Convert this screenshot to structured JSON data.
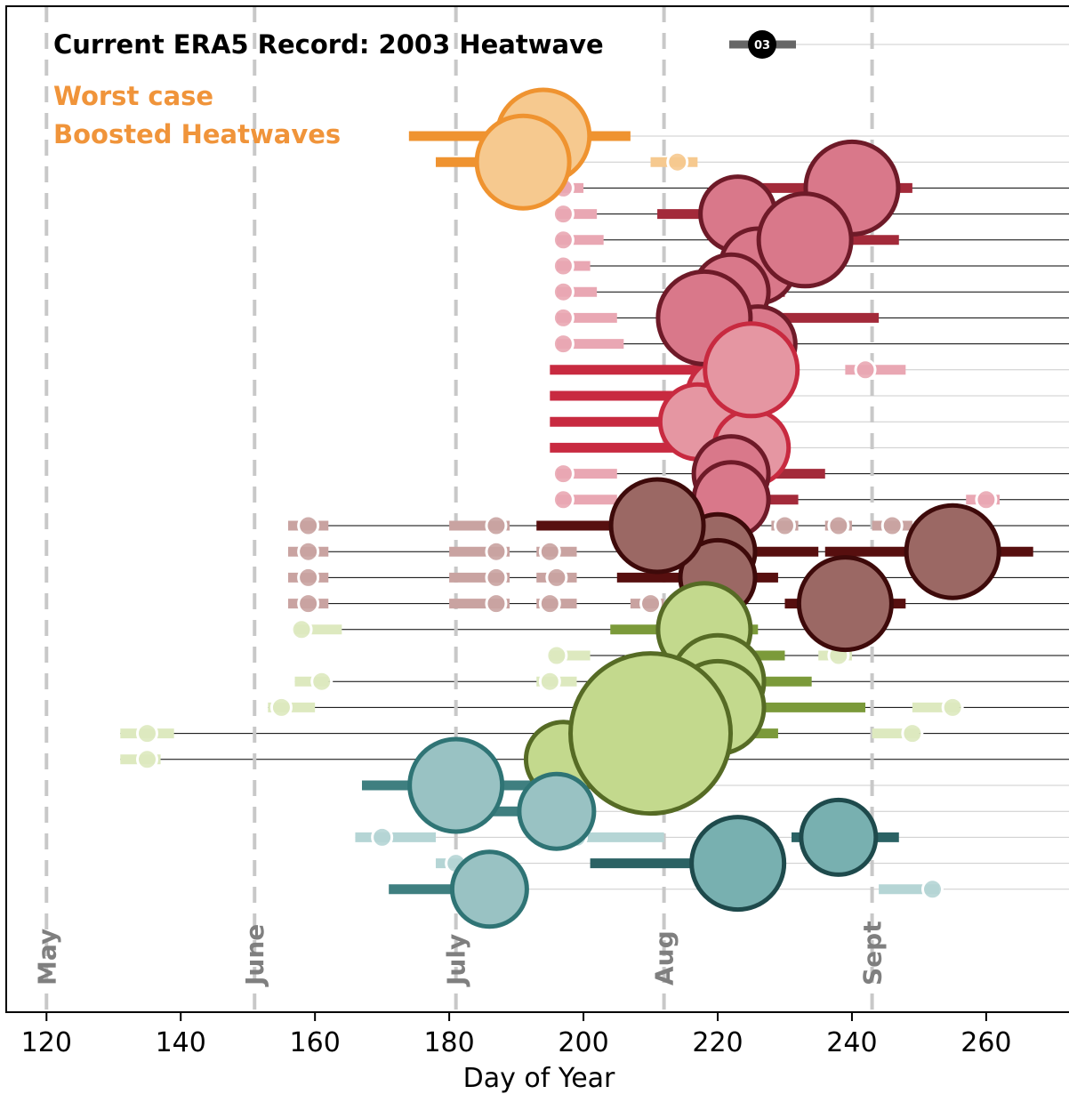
{
  "chart_data": {
    "type": "scatter",
    "xlabel": "Day of Year",
    "xlim": [
      114,
      273
    ],
    "xticks": [
      120,
      140,
      160,
      180,
      200,
      220,
      240,
      260
    ],
    "months": [
      {
        "label": "May",
        "day": 120
      },
      {
        "label": "June",
        "day": 151
      },
      {
        "label": "July",
        "day": 181
      },
      {
        "label": "Aug",
        "day": 212
      },
      {
        "label": "Sept",
        "day": 243
      }
    ],
    "legend": {
      "title": "Current ERA5 Record: 2003 Heatwave",
      "badge": "03",
      "line1": "Worst case",
      "line2": "Boosted Heatwaves"
    },
    "colors": {
      "orange_edge": "#ef9330",
      "orange_fill": "#f6c98f",
      "pink_edge": "#6e1a28",
      "pink_fill": "#d9788a",
      "pink_light": "#e9a7b3",
      "pink_bar": "#a32a3a",
      "red_bar": "#c82a40",
      "red_fill": "#e596a2",
      "brown_edge": "#3e0a0a",
      "brown_fill": "#9b6864",
      "brown_light": "#c9a3a1",
      "brown_bar": "#570f0f",
      "green_edge": "#566b25",
      "green_fill": "#c3d98d",
      "green_light": "#dde9bf",
      "green_bar": "#7b9a3a",
      "teal_edge": "#2f7475",
      "teal_dark_edge": "#1e4a4c",
      "teal_fill": "#99c2c3",
      "teal_mid": "#78b0b0",
      "teal_light": "#b5d5d5",
      "teal_bar": "#3f7f80",
      "teal_dark_bar": "#2b6264",
      "grid": "#cccccc",
      "month_line": "#c8c8c8"
    },
    "rows": [
      {
        "row": 1,
        "group": "orange",
        "events": [
          {
            "center": 194,
            "start": 174,
            "end": 207,
            "size": "large",
            "shade": "main"
          }
        ]
      },
      {
        "row": 2,
        "group": "orange",
        "events": [
          {
            "center": 191,
            "start": 178,
            "end": 196,
            "size": "large",
            "shade": "main"
          },
          {
            "center": 214,
            "start": 210,
            "end": 217,
            "size": "small",
            "shade": "light"
          }
        ]
      },
      {
        "row": 3,
        "group": "pink",
        "events": [
          {
            "center": 197,
            "start": 196,
            "end": 200,
            "size": "small",
            "shade": "light"
          },
          {
            "center": 240,
            "start": 224,
            "end": 249,
            "size": "large",
            "shade": "main"
          }
        ]
      },
      {
        "row": 4,
        "group": "pink",
        "events": [
          {
            "center": 197,
            "start": 196,
            "end": 202,
            "size": "small",
            "shade": "light"
          },
          {
            "center": 223,
            "start": 211,
            "end": 228,
            "size": "medium",
            "shade": "main"
          }
        ]
      },
      {
        "row": 5,
        "group": "pink",
        "events": [
          {
            "center": 197,
            "start": 196,
            "end": 203,
            "size": "small",
            "shade": "light"
          },
          {
            "center": 233,
            "start": 225,
            "end": 247,
            "size": "large",
            "shade": "main"
          }
        ]
      },
      {
        "row": 6,
        "group": "pink",
        "events": [
          {
            "center": 197,
            "start": 196,
            "end": 201,
            "size": "small",
            "shade": "light"
          },
          {
            "center": 226,
            "start": 220,
            "end": 231,
            "size": "medium",
            "shade": "main"
          }
        ]
      },
      {
        "row": 7,
        "group": "pink",
        "events": [
          {
            "center": 197,
            "start": 196,
            "end": 202,
            "size": "small",
            "shade": "light"
          },
          {
            "center": 222,
            "start": 215,
            "end": 230,
            "size": "medium",
            "shade": "main"
          }
        ]
      },
      {
        "row": 8,
        "group": "pink",
        "events": [
          {
            "center": 197,
            "start": 196,
            "end": 205,
            "size": "small",
            "shade": "light"
          },
          {
            "center": 218,
            "start": 212,
            "end": 244,
            "size": "large",
            "shade": "main"
          }
        ]
      },
      {
        "row": 9,
        "group": "pink",
        "events": [
          {
            "center": 197,
            "start": 196,
            "end": 206,
            "size": "small",
            "shade": "light"
          },
          {
            "center": 226,
            "start": 222,
            "end": 229,
            "size": "medium",
            "shade": "main"
          }
        ]
      },
      {
        "row": 10,
        "group": "red",
        "events": [
          {
            "center": 225,
            "start": 195,
            "end": 230,
            "size": "large",
            "shade": "main"
          },
          {
            "center": 242,
            "start": 239,
            "end": 248,
            "size": "small",
            "shade": "light"
          }
        ]
      },
      {
        "row": 11,
        "group": "red",
        "events": [
          {
            "center": 221,
            "start": 195,
            "end": 226,
            "size": "medium",
            "shade": "main"
          }
        ]
      },
      {
        "row": 12,
        "group": "red",
        "events": [
          {
            "center": 217,
            "start": 195,
            "end": 222,
            "size": "medium",
            "shade": "main"
          }
        ]
      },
      {
        "row": 13,
        "group": "red",
        "events": [
          {
            "center": 225,
            "start": 195,
            "end": 230,
            "size": "medium",
            "shade": "main"
          }
        ]
      },
      {
        "row": 14,
        "group": "pink",
        "events": [
          {
            "center": 197,
            "start": 196,
            "end": 205,
            "size": "small",
            "shade": "light"
          },
          {
            "center": 222,
            "start": 217,
            "end": 236,
            "size": "medium",
            "shade": "main"
          }
        ]
      },
      {
        "row": 15,
        "group": "pink",
        "events": [
          {
            "center": 197,
            "start": 196,
            "end": 205,
            "size": "small",
            "shade": "light"
          },
          {
            "center": 222,
            "start": 217,
            "end": 232,
            "size": "medium",
            "shade": "main"
          },
          {
            "center": 260,
            "start": 257,
            "end": 262,
            "size": "small",
            "shade": "light"
          }
        ]
      },
      {
        "row": 16,
        "group": "brown",
        "events": [
          {
            "center": 159,
            "start": 156,
            "end": 162,
            "size": "small",
            "shade": "light"
          },
          {
            "center": 187,
            "start": 180,
            "end": 189,
            "size": "small",
            "shade": "light"
          },
          {
            "center": 211,
            "start": 193,
            "end": 222,
            "size": "large",
            "shade": "main"
          },
          {
            "center": 230,
            "start": 228,
            "end": 232,
            "size": "small",
            "shade": "light"
          },
          {
            "center": 238,
            "start": 236,
            "end": 240,
            "size": "small",
            "shade": "light"
          },
          {
            "center": 246,
            "start": 243,
            "end": 249,
            "size": "small",
            "shade": "light"
          }
        ]
      },
      {
        "row": 17,
        "group": "brown",
        "events": [
          {
            "center": 159,
            "start": 156,
            "end": 162,
            "size": "small",
            "shade": "light"
          },
          {
            "center": 187,
            "start": 180,
            "end": 189,
            "size": "small",
            "shade": "light"
          },
          {
            "center": 195,
            "start": 193,
            "end": 199,
            "size": "small",
            "shade": "light"
          },
          {
            "center": 220,
            "start": 217,
            "end": 235,
            "size": "medium",
            "shade": "main"
          },
          {
            "center": 255,
            "start": 236,
            "end": 267,
            "size": "large",
            "shade": "main"
          }
        ]
      },
      {
        "row": 18,
        "group": "brown",
        "events": [
          {
            "center": 159,
            "start": 156,
            "end": 162,
            "size": "small",
            "shade": "light"
          },
          {
            "center": 187,
            "start": 180,
            "end": 189,
            "size": "small",
            "shade": "light"
          },
          {
            "center": 196,
            "start": 193,
            "end": 199,
            "size": "small",
            "shade": "light"
          },
          {
            "center": 220,
            "start": 205,
            "end": 229,
            "size": "medium",
            "shade": "main"
          }
        ]
      },
      {
        "row": 19,
        "group": "brown",
        "events": [
          {
            "center": 159,
            "start": 156,
            "end": 162,
            "size": "small",
            "shade": "light"
          },
          {
            "center": 187,
            "start": 180,
            "end": 189,
            "size": "small",
            "shade": "light"
          },
          {
            "center": 195,
            "start": 193,
            "end": 199,
            "size": "small",
            "shade": "light"
          },
          {
            "center": 210,
            "start": 207,
            "end": 212,
            "size": "small",
            "shade": "light"
          },
          {
            "center": 239,
            "start": 230,
            "end": 248,
            "size": "large",
            "shade": "main"
          }
        ]
      },
      {
        "row": 20,
        "group": "green",
        "events": [
          {
            "center": 158,
            "start": 157,
            "end": 164,
            "size": "small",
            "shade": "light"
          },
          {
            "center": 218,
            "start": 204,
            "end": 226,
            "size": "large",
            "shade": "main"
          }
        ]
      },
      {
        "row": 21,
        "group": "green",
        "events": [
          {
            "center": 196,
            "start": 195,
            "end": 201,
            "size": "small",
            "shade": "light"
          },
          {
            "center": 219,
            "start": 215,
            "end": 230,
            "size": "medium",
            "shade": "main"
          },
          {
            "center": 238,
            "start": 235,
            "end": 240,
            "size": "small",
            "shade": "light"
          }
        ]
      },
      {
        "row": 22,
        "group": "green",
        "events": [
          {
            "center": 161,
            "start": 157,
            "end": 162,
            "size": "small",
            "shade": "light"
          },
          {
            "center": 195,
            "start": 193,
            "end": 199,
            "size": "small",
            "shade": "light"
          },
          {
            "center": 220,
            "start": 213,
            "end": 234,
            "size": "large",
            "shade": "main"
          }
        ]
      },
      {
        "row": 23,
        "group": "green",
        "events": [
          {
            "center": 155,
            "start": 153,
            "end": 160,
            "size": "small",
            "shade": "light"
          },
          {
            "center": 220,
            "start": 213,
            "end": 242,
            "size": "large",
            "shade": "main"
          },
          {
            "center": 255,
            "start": 249,
            "end": 256,
            "size": "small",
            "shade": "light"
          }
        ]
      },
      {
        "row": 24,
        "group": "green",
        "events": [
          {
            "center": 135,
            "start": 131,
            "end": 139,
            "size": "small",
            "shade": "light"
          },
          {
            "center": 210,
            "start": 208,
            "end": 229,
            "size": "xlarge",
            "shade": "main"
          },
          {
            "center": 249,
            "start": 243,
            "end": 250,
            "size": "small",
            "shade": "light"
          }
        ]
      },
      {
        "row": 25,
        "group": "green",
        "events": [
          {
            "center": 135,
            "start": 131,
            "end": 137,
            "size": "small",
            "shade": "light"
          },
          {
            "center": 197,
            "start": 192,
            "end": 199,
            "size": "medium",
            "shade": "main"
          }
        ]
      },
      {
        "row": 26,
        "group": "teal",
        "events": [
          {
            "center": 181,
            "start": 167,
            "end": 195,
            "size": "large",
            "shade": "main"
          }
        ]
      },
      {
        "row": 27,
        "group": "teal",
        "events": [
          {
            "center": 196,
            "start": 185,
            "end": 200,
            "size": "medium",
            "shade": "main"
          }
        ]
      },
      {
        "row": 28,
        "group": "teal",
        "events": [
          {
            "center": 170,
            "start": 166,
            "end": 178,
            "size": "small",
            "shade": "light"
          },
          {
            "center": 199,
            "start": 197,
            "end": 212,
            "size": "small",
            "shade": "light"
          },
          {
            "center": 238,
            "start": 231,
            "end": 247,
            "size": "medium",
            "shade": "dark"
          }
        ]
      },
      {
        "row": 29,
        "group": "teal",
        "events": [
          {
            "center": 181,
            "start": 178,
            "end": 183,
            "size": "small",
            "shade": "light"
          },
          {
            "center": 223,
            "start": 201,
            "end": 228,
            "size": "large",
            "shade": "dark"
          }
        ]
      },
      {
        "row": 30,
        "group": "teal",
        "events": [
          {
            "center": 186,
            "start": 171,
            "end": 190,
            "size": "medium",
            "shade": "main"
          },
          {
            "center": 252,
            "start": 244,
            "end": 253,
            "size": "small",
            "shade": "light"
          }
        ]
      }
    ]
  }
}
